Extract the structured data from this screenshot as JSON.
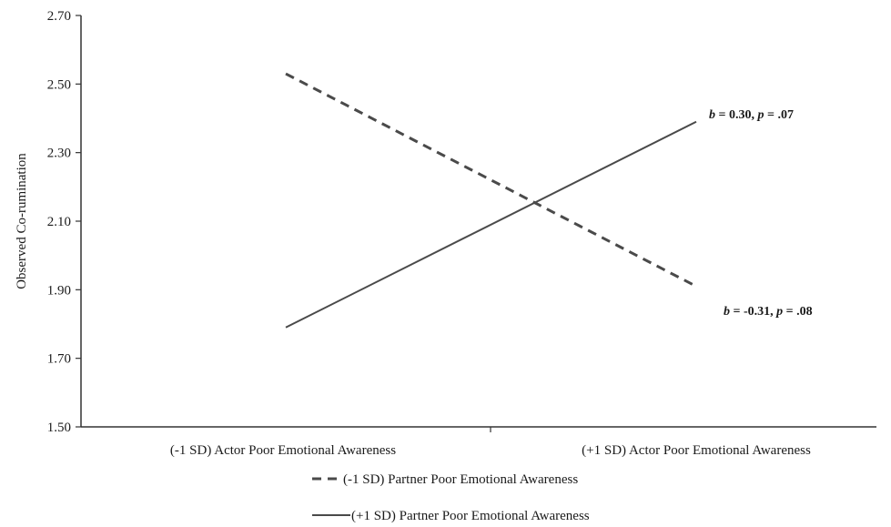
{
  "chart_data": {
    "type": "line",
    "title": "",
    "ylabel": "Observed Co-rumination",
    "xlabel": "",
    "categories": [
      "(-1 SD) Actor Poor Emotional Awareness",
      "(+1 SD) Actor Poor Emotional Awareness"
    ],
    "ylim": [
      1.5,
      2.7
    ],
    "yticks": [
      "1.50",
      "1.70",
      "1.90",
      "2.10",
      "2.30",
      "2.50",
      "2.70"
    ],
    "ytick_values": [
      1.5,
      1.7,
      1.9,
      2.1,
      2.3,
      2.5,
      2.7
    ],
    "grid": false,
    "legend_position": "bottom",
    "series": [
      {
        "name": "(-1 SD) Partner Poor Emotional Awareness",
        "style": "dashed",
        "color": "#4a4a4a",
        "values": [
          2.53,
          1.91
        ],
        "annotation": {
          "b_sym": "b",
          "b_text": " = -0.31, ",
          "p_sym": "p",
          "p_text": " = .08"
        }
      },
      {
        "name": "(+1 SD) Partner Poor Emotional Awareness",
        "style": "solid",
        "color": "#4a4a4a",
        "values": [
          1.79,
          2.39
        ],
        "annotation": {
          "b_sym": "b",
          "b_text": " = 0.30, ",
          "p_sym": "p",
          "p_text": " = .07"
        }
      }
    ]
  }
}
